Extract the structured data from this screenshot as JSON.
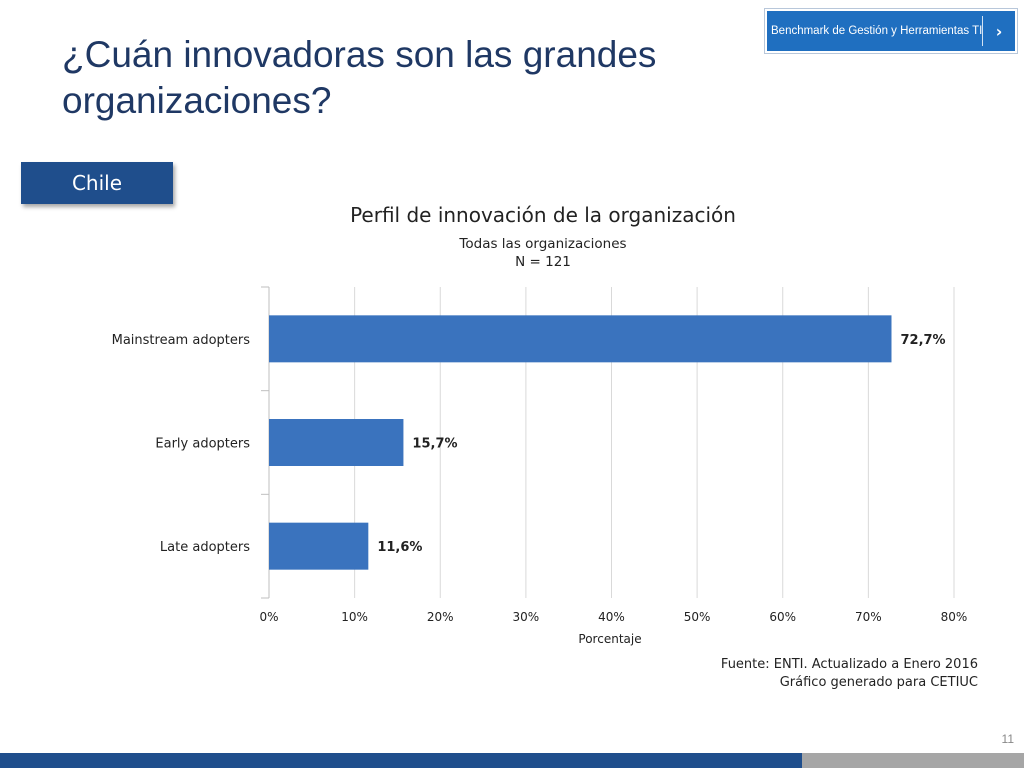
{
  "slide": {
    "title": "¿Cuán innovadoras son las grandes organizaciones?",
    "country_label": "Chile",
    "page_number": "11"
  },
  "benchmark_button": {
    "label": "Benchmark de Gestión y Herramientas TI",
    "icon": "chevron-right-icon"
  },
  "colors": {
    "title": "#1f3864",
    "bar": "#3a73be",
    "accent": "#1f4e8c",
    "button": "#1f6fc0"
  },
  "source": {
    "line1": "Fuente: ENTI. Actualizado a Enero 2016",
    "line2": "Gráfico generado para CETIUC"
  },
  "chart_data": {
    "type": "bar",
    "orientation": "horizontal",
    "title": "Perfil de innovación de la organización",
    "subtitle": "Todas las organizaciones",
    "subtitle2": "N = 121",
    "xlabel": "Porcentaje",
    "ylabel": "",
    "categories": [
      "Mainstream adopters",
      "Early adopters",
      "Late adopters"
    ],
    "values": [
      72.7,
      15.7,
      11.6
    ],
    "data_labels": [
      "72,7%",
      "15,7%",
      "11,6%"
    ],
    "xlim": [
      0,
      80
    ],
    "xticks": [
      "0%",
      "10%",
      "20%",
      "30%",
      "40%",
      "50%",
      "60%",
      "70%",
      "80%"
    ],
    "grid": true,
    "legend": "none"
  }
}
